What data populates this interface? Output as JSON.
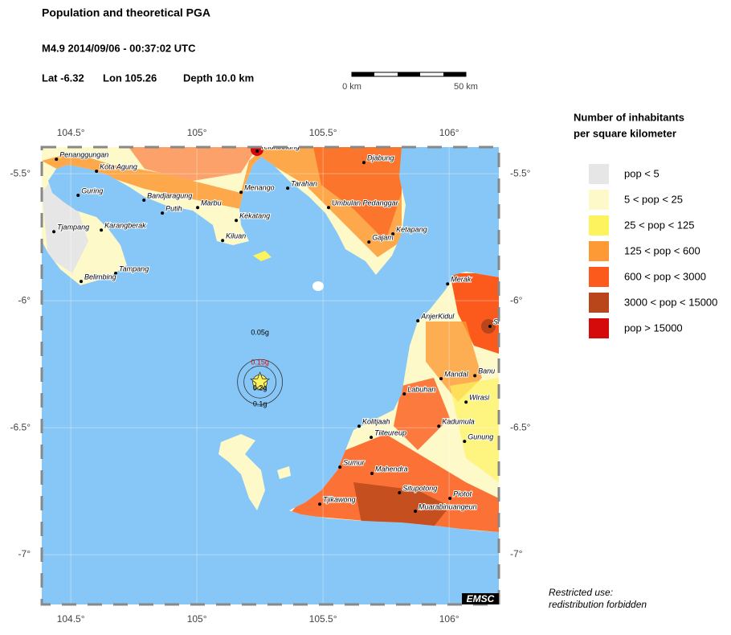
{
  "header": {
    "title": "Population and theoretical PGA",
    "event": "M4.9  2014/09/06 - 00:37:02 UTC",
    "lat": "Lat -6.32",
    "lon": "Lon 105.26",
    "depth": "Depth  10.0 km"
  },
  "scale_bar": {
    "start": "0 km",
    "end": "50 km"
  },
  "map": {
    "lon_range": [
      104.385,
      106.197
    ],
    "lat_range": [
      -5.395,
      -7.196
    ],
    "lon_ticks": [
      {
        "value": 104.5,
        "label": "104.5°"
      },
      {
        "value": 105,
        "label": "105°"
      },
      {
        "value": 105.5,
        "label": "105.5°"
      },
      {
        "value": 106,
        "label": "106°"
      }
    ],
    "lat_ticks": [
      {
        "value": -5.5,
        "label": "-5.5°"
      },
      {
        "value": -6,
        "label": "-6°"
      },
      {
        "value": -6.5,
        "label": "-6.5°"
      },
      {
        "value": -7,
        "label": "-7°"
      }
    ],
    "epicenter": {
      "lon": 105.25,
      "lat": -6.32
    },
    "pga_labels": [
      "0.05g",
      "0.15g",
      "0.2g",
      "0.1g"
    ],
    "cities": [
      {
        "name": "Penanggungan",
        "lon": 104.443,
        "lat": -5.443
      },
      {
        "name": "Kota Agung",
        "lon": 104.602,
        "lat": -5.49
      },
      {
        "name": "Telukbetung",
        "lon": 105.239,
        "lat": -5.411
      },
      {
        "name": "Djabung",
        "lon": 105.662,
        "lat": -5.456
      },
      {
        "name": "Guring",
        "lon": 104.529,
        "lat": -5.585
      },
      {
        "name": "Menango",
        "lon": 105.175,
        "lat": -5.573
      },
      {
        "name": "Tarahan",
        "lon": 105.36,
        "lat": -5.557
      },
      {
        "name": "Bandjaragung",
        "lon": 104.79,
        "lat": -5.604
      },
      {
        "name": "Putih",
        "lon": 104.863,
        "lat": -5.655
      },
      {
        "name": "Marbu",
        "lon": 105.003,
        "lat": -5.633
      },
      {
        "name": "Umbulan Pedanggar",
        "lon": 105.522,
        "lat": -5.633
      },
      {
        "name": "Kekatang",
        "lon": 105.156,
        "lat": -5.684
      },
      {
        "name": "Tjampang",
        "lon": 104.433,
        "lat": -5.728
      },
      {
        "name": "Karangberak",
        "lon": 104.621,
        "lat": -5.722
      },
      {
        "name": "Ketapang",
        "lon": 105.777,
        "lat": -5.737
      },
      {
        "name": "Gajam",
        "lon": 105.682,
        "lat": -5.769
      },
      {
        "name": "Kiluan",
        "lon": 105.102,
        "lat": -5.763
      },
      {
        "name": "Tampang",
        "lon": 104.678,
        "lat": -5.892
      },
      {
        "name": "Belimbing",
        "lon": 104.541,
        "lat": -5.924
      },
      {
        "name": "Merak",
        "lon": 105.994,
        "lat": -5.934
      },
      {
        "name": "AnjerKidul",
        "lon": 105.876,
        "lat": -6.079
      },
      {
        "name": "Ser",
        "lon": 106.162,
        "lat": -6.101
      },
      {
        "name": "Mandal",
        "lon": 105.968,
        "lat": -6.307
      },
      {
        "name": "Banu",
        "lon": 106.102,
        "lat": -6.295
      },
      {
        "name": "Labuhan",
        "lon": 105.822,
        "lat": -6.367
      },
      {
        "name": "Wirasi",
        "lon": 106.067,
        "lat": -6.399
      },
      {
        "name": "Kolitjaah",
        "lon": 105.643,
        "lat": -6.494
      },
      {
        "name": "Tiiteureup",
        "lon": 105.691,
        "lat": -6.538
      },
      {
        "name": "Kadumula",
        "lon": 105.959,
        "lat": -6.494
      },
      {
        "name": "Gunung",
        "lon": 106.061,
        "lat": -6.554
      },
      {
        "name": "Sumur",
        "lon": 105.567,
        "lat": -6.655
      },
      {
        "name": "Mahendra",
        "lon": 105.694,
        "lat": -6.68
      },
      {
        "name": "Situpotong",
        "lon": 105.803,
        "lat": -6.756
      },
      {
        "name": "Piotot",
        "lon": 106.003,
        "lat": -6.778
      },
      {
        "name": "Tjikawong",
        "lon": 105.487,
        "lat": -6.801
      },
      {
        "name": "Muarabinuangeun",
        "lon": 105.866,
        "lat": -6.829
      }
    ]
  },
  "legend": {
    "title": [
      "Number of inhabitants",
      "per square kilometer"
    ],
    "entries": [
      {
        "label": "pop < 5",
        "color": "#e6e6e6"
      },
      {
        "label": "5 < pop < 25",
        "color": "#fdf9c8"
      },
      {
        "label": "25 < pop < 125",
        "color": "#fcf35f"
      },
      {
        "label": "125 < pop < 600",
        "color": "#fd9a35"
      },
      {
        "label": "600 < pop < 3000",
        "color": "#fb5a1c"
      },
      {
        "label": "3000 < pop < 15000",
        "color": "#b8461a"
      },
      {
        "label": "pop > 15000",
        "color": "#d50b0b"
      }
    ]
  },
  "footer": {
    "credit": "EMSC",
    "notice": [
      "Restricted use:",
      "redistribution forbidden"
    ]
  }
}
